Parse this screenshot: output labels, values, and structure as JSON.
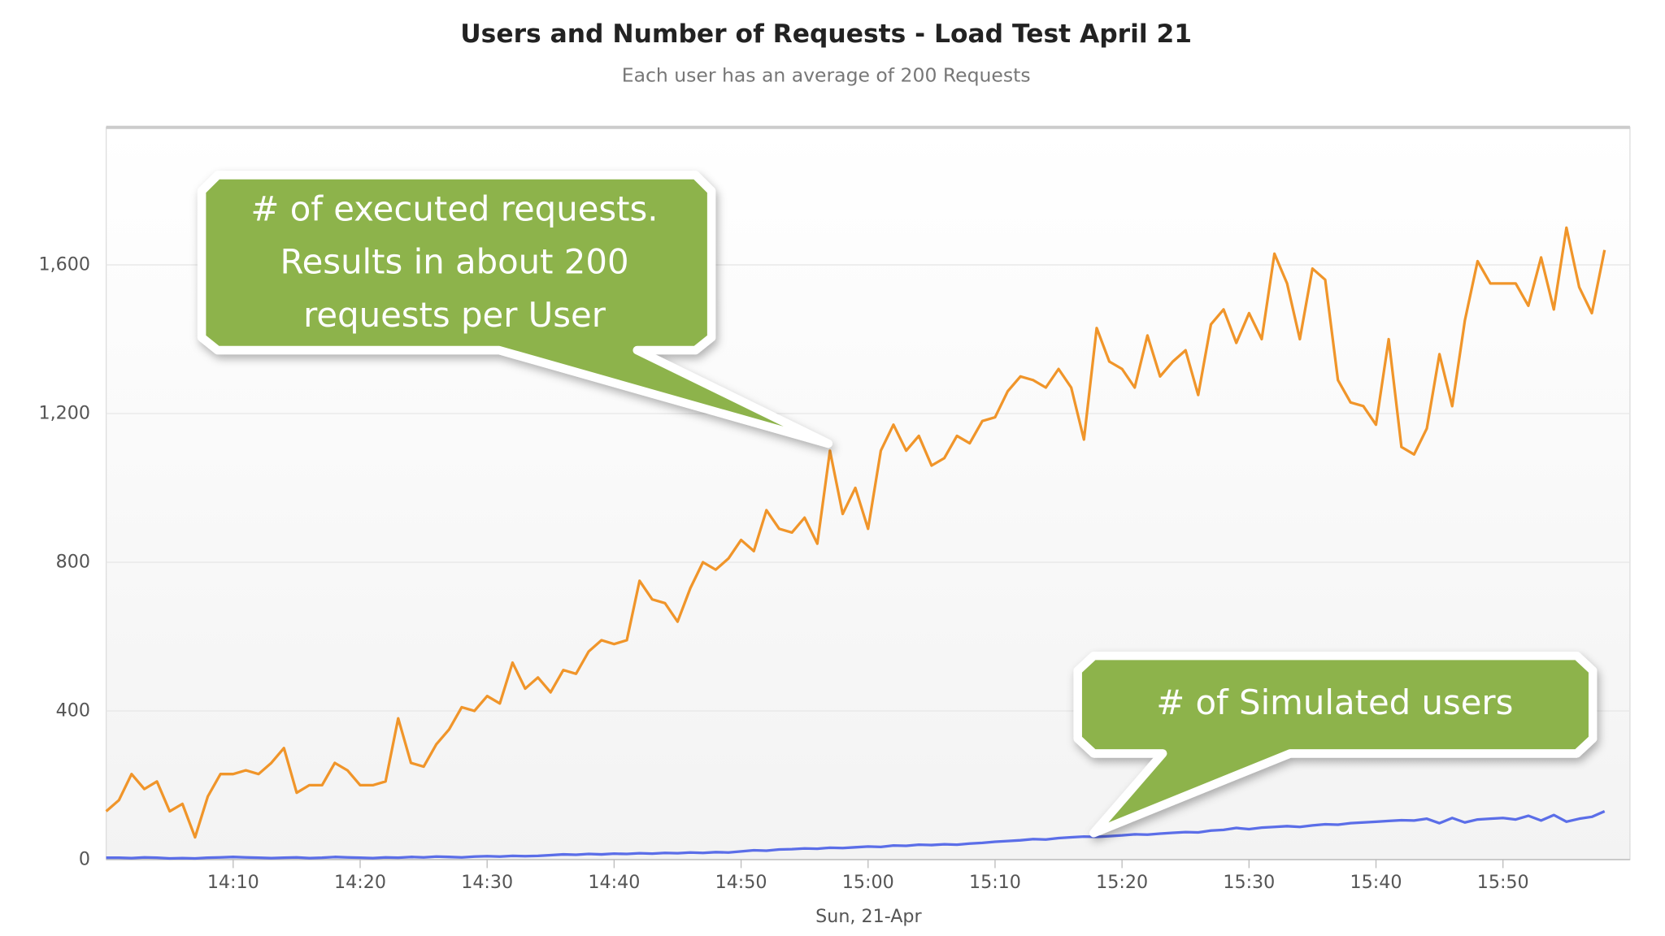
{
  "chart_data": {
    "type": "line",
    "title": "Users and Number of Requests - Load Test April 21",
    "subtitle": "Each user has an average of 200 Requests",
    "x_label": "Sun, 21-Apr",
    "x": [
      840,
      841,
      842,
      843,
      844,
      845,
      846,
      847,
      848,
      849,
      850,
      851,
      852,
      853,
      854,
      855,
      856,
      857,
      858,
      859,
      860,
      861,
      862,
      863,
      864,
      865,
      866,
      867,
      868,
      869,
      870,
      871,
      872,
      873,
      874,
      875,
      876,
      877,
      878,
      879,
      880,
      881,
      882,
      883,
      884,
      885,
      886,
      887,
      888,
      889,
      890,
      891,
      892,
      893,
      894,
      895,
      896,
      897,
      898,
      899,
      900,
      901,
      902,
      903,
      904,
      905,
      906,
      907,
      908,
      909,
      910,
      911,
      912,
      913,
      914,
      915,
      916,
      917,
      918,
      919,
      920,
      921,
      922,
      923,
      924,
      925,
      926,
      927,
      928,
      929,
      930,
      931,
      932,
      933,
      934,
      935,
      936,
      937,
      938,
      939,
      940,
      941,
      942,
      943,
      944,
      945,
      946,
      947,
      948,
      949,
      950,
      951,
      952,
      953,
      954,
      955,
      956,
      957,
      958
    ],
    "series": [
      {
        "name": "# of executed requests",
        "color": "#f0952a",
        "values": [
          130,
          160,
          230,
          190,
          210,
          130,
          150,
          60,
          170,
          230,
          230,
          240,
          230,
          260,
          300,
          180,
          200,
          200,
          260,
          240,
          200,
          200,
          210,
          380,
          260,
          250,
          310,
          350,
          410,
          400,
          440,
          420,
          530,
          460,
          490,
          450,
          510,
          500,
          560,
          590,
          580,
          590,
          750,
          700,
          690,
          640,
          730,
          800,
          780,
          810,
          860,
          830,
          940,
          890,
          880,
          920,
          850,
          1100,
          930,
          1000,
          890,
          1100,
          1170,
          1100,
          1140,
          1060,
          1080,
          1140,
          1120,
          1180,
          1190,
          1260,
          1300,
          1290,
          1270,
          1320,
          1270,
          1130,
          1430,
          1340,
          1320,
          1270,
          1410,
          1300,
          1340,
          1370,
          1250,
          1440,
          1480,
          1390,
          1470,
          1400,
          1630,
          1550,
          1400,
          1590,
          1560,
          1290,
          1230,
          1220,
          1170,
          1400,
          1110,
          1090,
          1160,
          1360,
          1220,
          1450,
          1610,
          1550,
          1550,
          1550,
          1490,
          1620,
          1480,
          1700,
          1540,
          1470,
          1640
        ]
      },
      {
        "name": "# of Simulated users",
        "color": "#5b6ee8",
        "values": [
          5,
          5,
          4,
          6,
          5,
          3,
          4,
          3,
          5,
          6,
          7,
          6,
          5,
          4,
          5,
          6,
          4,
          5,
          7,
          6,
          5,
          4,
          6,
          5,
          7,
          6,
          8,
          7,
          6,
          8,
          9,
          8,
          10,
          9,
          10,
          12,
          14,
          13,
          15,
          14,
          16,
          15,
          17,
          16,
          18,
          17,
          19,
          18,
          20,
          19,
          22,
          25,
          24,
          27,
          28,
          30,
          29,
          32,
          31,
          33,
          35,
          34,
          38,
          37,
          40,
          39,
          41,
          40,
          43,
          45,
          48,
          50,
          52,
          55,
          54,
          58,
          60,
          62,
          61,
          63,
          65,
          68,
          67,
          70,
          72,
          74,
          73,
          78,
          80,
          85,
          82,
          86,
          88,
          90,
          88,
          92,
          95,
          94,
          98,
          100,
          102,
          104,
          106,
          105,
          110,
          98,
          112,
          100,
          108,
          110,
          112,
          108,
          118,
          105,
          120,
          102,
          110,
          115,
          130
        ]
      }
    ],
    "xlim": [
      840,
      960
    ],
    "xticks": [
      {
        "value": 850,
        "label": "14:10"
      },
      {
        "value": 860,
        "label": "14:20"
      },
      {
        "value": 870,
        "label": "14:30"
      },
      {
        "value": 880,
        "label": "14:40"
      },
      {
        "value": 890,
        "label": "14:50"
      },
      {
        "value": 900,
        "label": "15:00"
      },
      {
        "value": 910,
        "label": "15:10"
      },
      {
        "value": 920,
        "label": "15:20"
      },
      {
        "value": 930,
        "label": "15:30"
      },
      {
        "value": 940,
        "label": "15:40"
      },
      {
        "value": 950,
        "label": "15:50"
      }
    ],
    "ylim": [
      0,
      1950
    ],
    "yticks": [
      0,
      400,
      800,
      {
        "value": 1200,
        "label": "1,200"
      },
      {
        "value": 1600,
        "label": "1,600"
      }
    ],
    "grid": true,
    "annotations": [
      {
        "lines": [
          "# of executed requests.",
          "Results in about 200",
          "requests per User"
        ]
      },
      {
        "lines": [
          "# of Simulated users"
        ]
      }
    ]
  }
}
